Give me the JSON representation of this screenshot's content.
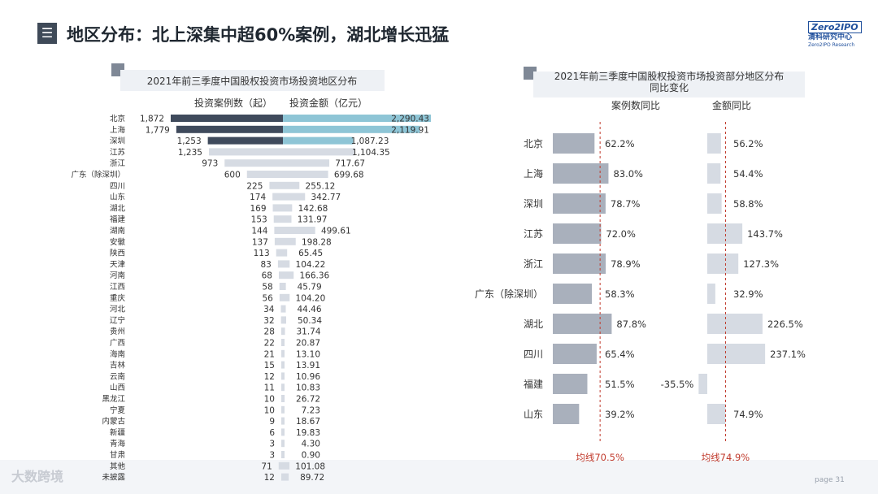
{
  "header": {
    "menu_glyph": "☰",
    "title": "地区分布：北上深集中超60%案例，湖北增长迅猛"
  },
  "logo": {
    "brand": "Zero2IPO",
    "cn": "清科研究中心",
    "en": "Zero2IPO Research"
  },
  "footer": {
    "brand": "大数跨境",
    "page": "page 31"
  },
  "colors": {
    "dark": "#3f4a5c",
    "teal": "#8ec5d6",
    "light_gray": "#d6dbe3",
    "mid_gray": "#a9b0bc",
    "avg_line": "#c0392b"
  },
  "chart_data": [
    {
      "type": "bar",
      "title": "2021年前三季度中国股权投资市场投资地区分布",
      "series": [
        {
          "name": "投资案例数（起）",
          "values": [
            1872,
            1779,
            1253,
            1235,
            973,
            600,
            225,
            174,
            169,
            153,
            144,
            137,
            113,
            83,
            68,
            58,
            56,
            34,
            32,
            28,
            22,
            21,
            15,
            12,
            11,
            10,
            10,
            9,
            6,
            3,
            3,
            71,
            12
          ]
        },
        {
          "name": "投资金额（亿元）",
          "values": [
            2290.43,
            2119.91,
            1087.23,
            1104.35,
            717.67,
            699.68,
            255.12,
            342.77,
            142.68,
            131.97,
            499.61,
            198.28,
            65.45,
            104.22,
            166.36,
            45.79,
            104.2,
            44.46,
            50.34,
            31.74,
            20.87,
            13.1,
            13.91,
            10.96,
            10.83,
            26.72,
            7.23,
            18.67,
            19.83,
            4.3,
            0.9,
            101.08,
            89.72
          ]
        }
      ],
      "categories": [
        "北京",
        "上海",
        "深圳",
        "江苏",
        "浙江",
        "广东（除深圳）",
        "四川",
        "山东",
        "湖北",
        "福建",
        "湖南",
        "安徽",
        "陕西",
        "天津",
        "河南",
        "江西",
        "重庆",
        "河北",
        "辽宁",
        "贵州",
        "广西",
        "海南",
        "吉林",
        "云南",
        "山西",
        "黑龙江",
        "宁夏",
        "内蒙古",
        "新疆",
        "青海",
        "甘肃",
        "其他",
        "未披露"
      ],
      "count_labels": [
        "1,872",
        "1,779",
        "1,253",
        "1,235",
        "973",
        "600",
        "225",
        "174",
        "169",
        "153",
        "144",
        "137",
        "113",
        "83",
        "68",
        "58",
        "56",
        "34",
        "32",
        "28",
        "22",
        "21",
        "15",
        "12",
        "11",
        "10",
        "10",
        "9",
        "6",
        "3",
        "3",
        "71",
        "12"
      ],
      "amount_labels": [
        "2,290.43",
        "2,119.91",
        "1,087.23",
        "1,104.35",
        "717.67",
        "699.68",
        "255.12",
        "342.77",
        "142.68",
        "131.97",
        "499.61",
        "198.28",
        "65.45",
        "104.22",
        "166.36",
        "45.79",
        "104.20",
        "44.46",
        "50.34",
        "31.74",
        "20.87",
        "13.10",
        "13.91",
        "10.96",
        "10.83",
        "26.72",
        "7.23",
        "18.67",
        "19.83",
        "4.30",
        "0.90",
        "101.08",
        "89.72"
      ],
      "legend": "top"
    },
    {
      "type": "bar",
      "title_lines": [
        "2021年前三季度中国股权投资市场投资部分地区分布",
        "同比变化"
      ],
      "categories": [
        "北京",
        "上海",
        "深圳",
        "江苏",
        "浙江",
        "广东（除深圳）",
        "湖北",
        "四川",
        "福建",
        "山东"
      ],
      "series": [
        {
          "name": "案例数同比",
          "unit": "%",
          "values": [
            62.2,
            83.0,
            78.7,
            72.0,
            78.9,
            58.3,
            87.8,
            65.4,
            51.5,
            39.2
          ],
          "average": 70.5,
          "average_label": "均线70.5%"
        },
        {
          "name": "金额同比",
          "unit": "%",
          "values": [
            56.2,
            54.4,
            58.8,
            143.7,
            127.3,
            32.9,
            226.5,
            237.1,
            -35.5,
            74.9
          ],
          "average": 74.9,
          "average_label": "均线74.9%"
        }
      ],
      "count_labels": [
        "62.2%",
        "83.0%",
        "78.7%",
        "72.0%",
        "78.9%",
        "58.3%",
        "87.8%",
        "65.4%",
        "51.5%",
        "39.2%"
      ],
      "amount_labels": [
        "56.2%",
        "54.4%",
        "58.8%",
        "143.7%",
        "127.3%",
        "32.9%",
        "226.5%",
        "237.1%",
        "-35.5%",
        "74.9%"
      ]
    }
  ]
}
